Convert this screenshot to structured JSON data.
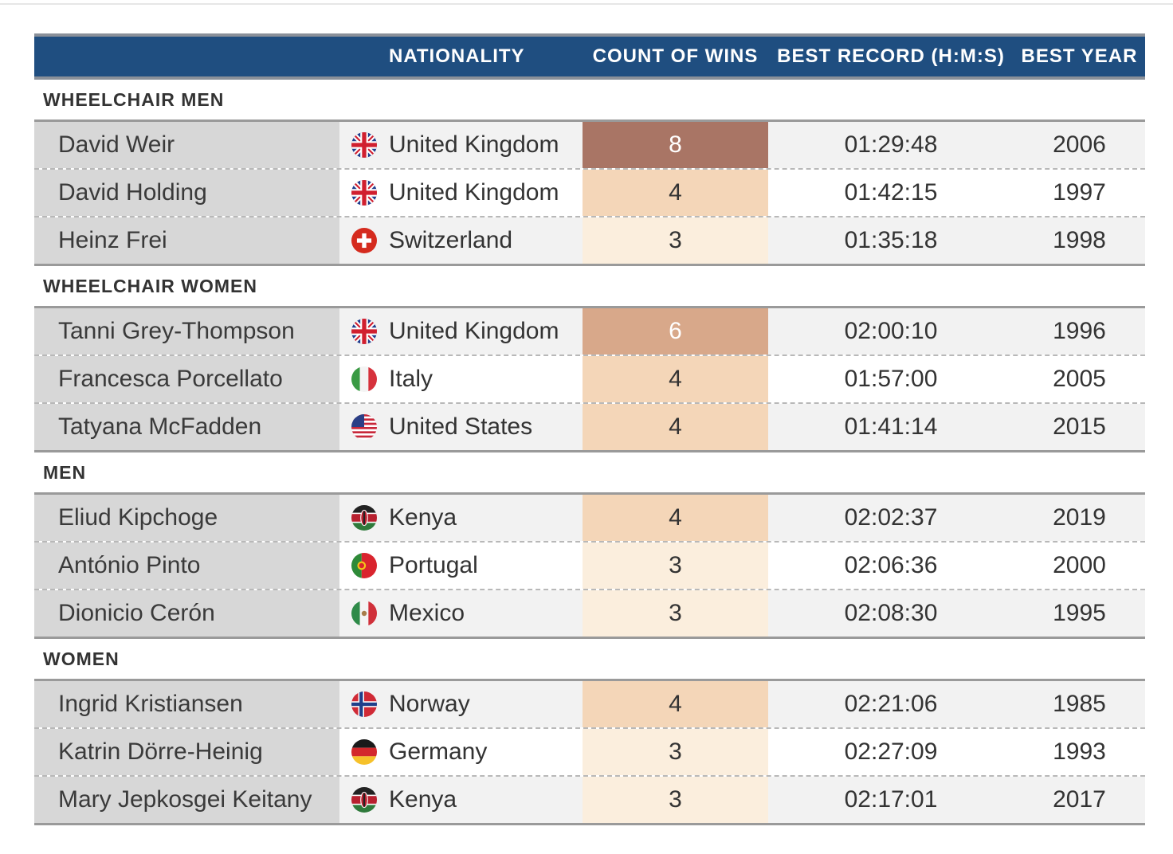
{
  "header": {
    "name_label": "",
    "nationality_label": "NATIONALITY",
    "wins_label": "COUNT OF WINS",
    "record_label": "BEST RECORD (H:M:S)",
    "year_label": "BEST YEAR"
  },
  "colors": {
    "header_bg": "#1f4e80",
    "wins_scale": {
      "3": "#fbeedd",
      "4": "#f4d6b8",
      "6": "#d8a88a",
      "8": "#a97565"
    },
    "light_text_on": [
      6,
      8
    ]
  },
  "chart_data": {
    "type": "table",
    "columns": [
      "",
      "NATIONALITY",
      "COUNT OF WINS",
      "BEST RECORD (H:M:S)",
      "BEST YEAR"
    ],
    "groups": [
      {
        "title": "WHEELCHAIR MEN",
        "rows": [
          {
            "name": "David Weir",
            "nationality": "United Kingdom",
            "flag": "uk-flag-icon",
            "wins": 8,
            "record": "01:29:48",
            "year": "2006"
          },
          {
            "name": "David Holding",
            "nationality": "United Kingdom",
            "flag": "uk-flag-icon",
            "wins": 4,
            "record": "01:42:15",
            "year": "1997"
          },
          {
            "name": "Heinz Frei",
            "nationality": "Switzerland",
            "flag": "switzerland-flag-icon",
            "wins": 3,
            "record": "01:35:18",
            "year": "1998"
          }
        ]
      },
      {
        "title": "WHEELCHAIR WOMEN",
        "rows": [
          {
            "name": "Tanni Grey-Thompson",
            "nationality": "United Kingdom",
            "flag": "uk-flag-icon",
            "wins": 6,
            "record": "02:00:10",
            "year": "1996"
          },
          {
            "name": "Francesca Porcellato",
            "nationality": "Italy",
            "flag": "italy-flag-icon",
            "wins": 4,
            "record": "01:57:00",
            "year": "2005"
          },
          {
            "name": "Tatyana McFadden",
            "nationality": "United States",
            "flag": "usa-flag-icon",
            "wins": 4,
            "record": "01:41:14",
            "year": "2015"
          }
        ]
      },
      {
        "title": "MEN",
        "rows": [
          {
            "name": "Eliud Kipchoge",
            "nationality": "Kenya",
            "flag": "kenya-flag-icon",
            "wins": 4,
            "record": "02:02:37",
            "year": "2019"
          },
          {
            "name": "António Pinto",
            "nationality": "Portugal",
            "flag": "portugal-flag-icon",
            "wins": 3,
            "record": "02:06:36",
            "year": "2000"
          },
          {
            "name": "Dionicio Cerón",
            "nationality": "Mexico",
            "flag": "mexico-flag-icon",
            "wins": 3,
            "record": "02:08:30",
            "year": "1995"
          }
        ]
      },
      {
        "title": "WOMEN",
        "rows": [
          {
            "name": "Ingrid Kristiansen",
            "nationality": "Norway",
            "flag": "norway-flag-icon",
            "wins": 4,
            "record": "02:21:06",
            "year": "1985"
          },
          {
            "name": "Katrin Dörre-Heinig",
            "nationality": "Germany",
            "flag": "germany-flag-icon",
            "wins": 3,
            "record": "02:27:09",
            "year": "1993"
          },
          {
            "name": "Mary Jepkosgei Keitany",
            "nationality": "Kenya",
            "flag": "kenya-flag-icon",
            "wins": 3,
            "record": "02:17:01",
            "year": "2017"
          }
        ]
      }
    ]
  }
}
